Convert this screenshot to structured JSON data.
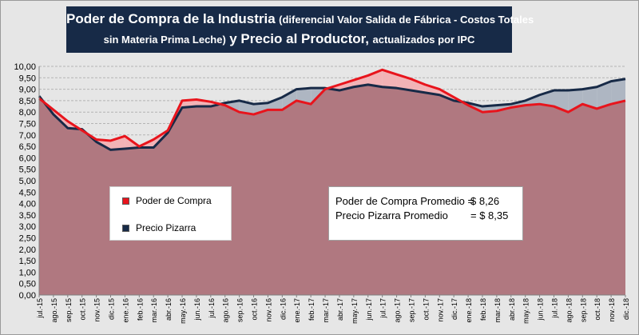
{
  "title": {
    "line1_big": "Poder de Compra de la Industria",
    "line1_small": "(diferencial Valor Salida de Fábrica - Costos Totales",
    "line2_small_a": "sin Materia Prima Leche)",
    "line2_big": "y Precio al Productor,",
    "line2_small_b": "actualizados por IPC"
  },
  "legend": {
    "items": [
      {
        "label": "Poder de Compra",
        "color": "#e8141c"
      },
      {
        "label": "Precio Pizarra",
        "color": "#172a47"
      }
    ]
  },
  "averages": {
    "poder_label": "Poder de Compra Promedio =",
    "poder_value": "$ 8,26",
    "precio_label": "Precio Pizarra Promedio",
    "precio_value": "= $ 8,35"
  },
  "colors": {
    "poder_line": "#e8141c",
    "pizarra_line": "#172a47",
    "area_fill": "#b07880",
    "poder_above_fill": "#f2b3b6",
    "pizarra_above_fill": "#aeb6c2"
  },
  "chart_data": {
    "type": "area",
    "ylim": [
      0,
      10
    ],
    "ytick_labels": [
      "0,00",
      "0,50",
      "1,00",
      "1,50",
      "2,00",
      "2,50",
      "3,00",
      "3,50",
      "4,00",
      "4,50",
      "5,00",
      "5,50",
      "6,00",
      "6,50",
      "7,00",
      "7,50",
      "8,00",
      "8,50",
      "9,00",
      "9,50",
      "10,00"
    ],
    "grid": true,
    "categories": [
      "jul.-15",
      "ago.-15",
      "sep.-15",
      "oct.-15",
      "nov.-15",
      "dic.-15",
      "ene.-16",
      "feb.-16",
      "mar.-16",
      "abr.-16",
      "may.-16",
      "jun.-16",
      "jul.-16",
      "ago.-16",
      "sep.-16",
      "oct.-16",
      "nov.-16",
      "dic.-16",
      "ene.-17",
      "feb.-17",
      "mar.-17",
      "abr.-17",
      "may.-17",
      "jun.-17",
      "jul.-17",
      "ago.-17",
      "sep.-17",
      "oct.-17",
      "nov.-17",
      "dic.-17",
      "ene.-18",
      "feb.-18",
      "mar.-18",
      "abr.-18",
      "may.-18",
      "jun.-18",
      "jul.-18",
      "ago.-18",
      "sep.-18",
      "oct.-18",
      "nov.-18",
      "dic.-18"
    ],
    "series": [
      {
        "name": "Poder de Compra",
        "values": [
          8.6,
          8.1,
          7.6,
          7.2,
          6.8,
          6.75,
          6.95,
          6.5,
          6.8,
          7.2,
          8.5,
          8.55,
          8.45,
          8.3,
          8.0,
          7.9,
          8.1,
          8.1,
          8.5,
          8.35,
          9.0,
          9.2,
          9.4,
          9.6,
          9.85,
          9.65,
          9.45,
          9.2,
          9.0,
          8.65,
          8.3,
          8.0,
          8.05,
          8.2,
          8.3,
          8.35,
          8.25,
          8.0,
          8.35,
          8.15,
          8.35,
          8.5
        ]
      },
      {
        "name": "Precio Pizarra",
        "values": [
          8.7,
          7.9,
          7.3,
          7.25,
          6.7,
          6.35,
          6.4,
          6.45,
          6.45,
          7.1,
          8.2,
          8.25,
          8.25,
          8.4,
          8.5,
          8.35,
          8.4,
          8.65,
          9.0,
          9.05,
          9.05,
          8.95,
          9.1,
          9.2,
          9.1,
          9.05,
          8.95,
          8.85,
          8.75,
          8.5,
          8.4,
          8.25,
          8.3,
          8.35,
          8.5,
          8.75,
          8.95,
          8.95,
          9.0,
          9.1,
          9.35,
          9.45
        ]
      }
    ]
  }
}
